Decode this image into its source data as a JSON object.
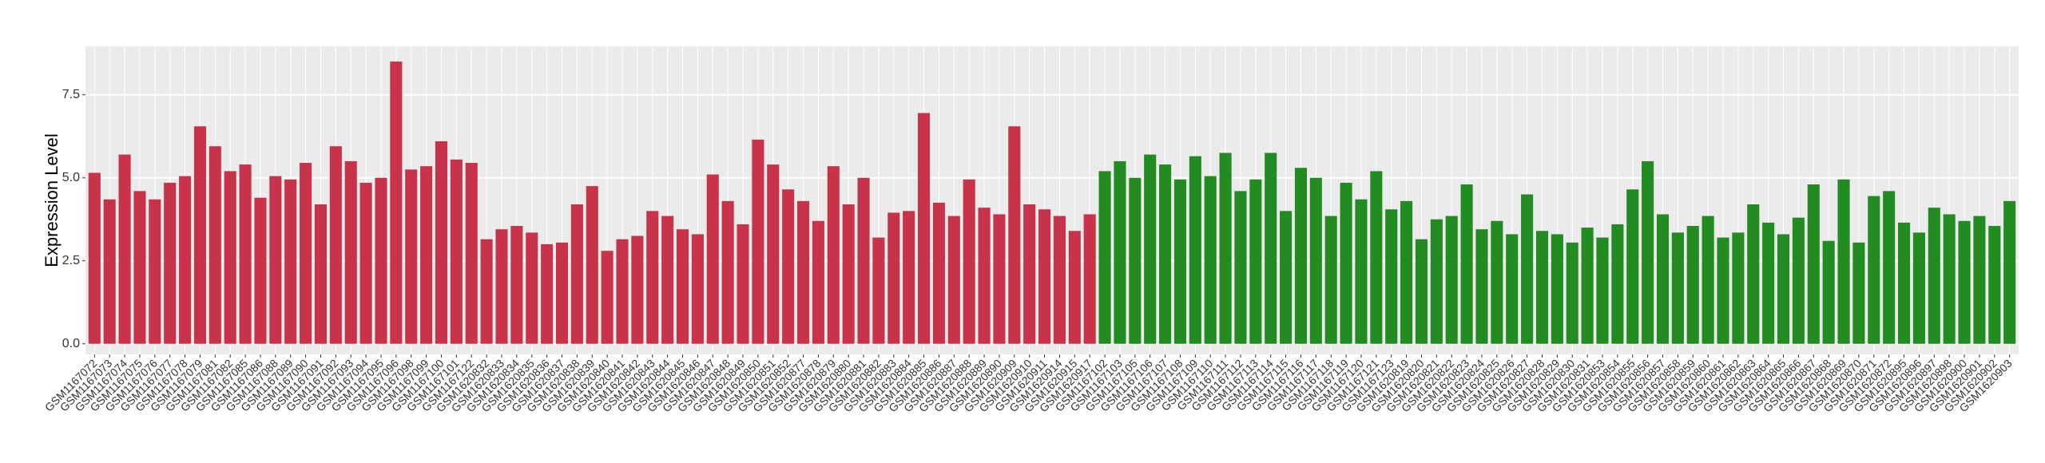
{
  "chart_data": {
    "type": "bar",
    "y_label": "Expression Level",
    "ylim": [
      -0.32,
      8.96
    ],
    "yticks": [
      {
        "value": 0,
        "label": "0.0"
      },
      {
        "value": 2.5,
        "label": "2.5"
      },
      {
        "value": 5,
        "label": "5.0"
      },
      {
        "value": 7.5,
        "label": "7.5"
      }
    ],
    "grid": true,
    "series": [
      {
        "color": "#c8334a",
        "categories": [
          "GSM1167072",
          "GSM1167073",
          "GSM1167074",
          "GSM1167075",
          "GSM1167076",
          "GSM1167077",
          "GSM1167078",
          "GSM1167079",
          "GSM1167081",
          "GSM1167082",
          "GSM1167085",
          "GSM1167086",
          "GSM1167088",
          "GSM1167089",
          "GSM1167090",
          "GSM1167091",
          "GSM1167092",
          "GSM1167093",
          "GSM1167094",
          "GSM1167095",
          "GSM1167096",
          "GSM1167098",
          "GSM1167099",
          "GSM1167100",
          "GSM1167101",
          "GSM1167122",
          "GSM1620832",
          "GSM1620833",
          "GSM1620834",
          "GSM1620835",
          "GSM1620836",
          "GSM1620837",
          "GSM1620838",
          "GSM1620839",
          "GSM1620840",
          "GSM1620841",
          "GSM1620842",
          "GSM1620843",
          "GSM1620844",
          "GSM1620845",
          "GSM1620846",
          "GSM1620847",
          "GSM1620848",
          "GSM1620849",
          "GSM1620850",
          "GSM1620851",
          "GSM1620852",
          "GSM1620877",
          "GSM1620878",
          "GSM1620879",
          "GSM1620880",
          "GSM1620881",
          "GSM1620882",
          "GSM1620883",
          "GSM1620884",
          "GSM1620885",
          "GSM1620886",
          "GSM1620887",
          "GSM1620888",
          "GSM1620889",
          "GSM1620890",
          "GSM1620909",
          "GSM1620910",
          "GSM1620911",
          "GSM1620914",
          "GSM1620915",
          "GSM1620917"
        ],
        "values": [
          5.15,
          4.35,
          5.7,
          4.6,
          4.35,
          4.85,
          5.05,
          6.55,
          5.95,
          5.2,
          5.4,
          4.4,
          5.05,
          4.95,
          5.45,
          4.2,
          5.95,
          5.5,
          4.85,
          5.0,
          8.5,
          5.25,
          5.35,
          6.1,
          5.55,
          5.45,
          3.15,
          3.45,
          3.55,
          3.35,
          3.0,
          3.05,
          4.2,
          4.75,
          2.8,
          3.15,
          3.25,
          4.0,
          3.85,
          3.45,
          3.3,
          5.1,
          4.3,
          3.6,
          6.15,
          5.4,
          4.65,
          4.3,
          3.7,
          5.35,
          4.2,
          5.0,
          3.2,
          3.95,
          4.0,
          6.95,
          4.25,
          3.85,
          4.95,
          4.1,
          3.9,
          6.55,
          4.2,
          4.05,
          3.85,
          3.4,
          3.9
        ]
      },
      {
        "color": "#228b22",
        "categories": [
          "GSM1167102",
          "GSM1167103",
          "GSM1167105",
          "GSM1167106",
          "GSM1167107",
          "GSM1167108",
          "GSM1167109",
          "GSM1167110",
          "GSM1167111",
          "GSM1167112",
          "GSM1167113",
          "GSM1167114",
          "GSM1167115",
          "GSM1167116",
          "GSM1167117",
          "GSM1167118",
          "GSM1167119",
          "GSM1167120",
          "GSM1167121",
          "GSM1167123",
          "GSM1620819",
          "GSM1620820",
          "GSM1620821",
          "GSM1620822",
          "GSM1620823",
          "GSM1620824",
          "GSM1620825",
          "GSM1620826",
          "GSM1620827",
          "GSM1620828",
          "GSM1620829",
          "GSM1620830",
          "GSM1620831",
          "GSM1620853",
          "GSM1620854",
          "GSM1620855",
          "GSM1620856",
          "GSM1620857",
          "GSM1620858",
          "GSM1620859",
          "GSM1620860",
          "GSM1620861",
          "GSM1620862",
          "GSM1620863",
          "GSM1620864",
          "GSM1620865",
          "GSM1620866",
          "GSM1620867",
          "GSM1620868",
          "GSM1620869",
          "GSM1620870",
          "GSM1620871",
          "GSM1620872",
          "GSM1620895",
          "GSM1620896",
          "GSM1620897",
          "GSM1620898",
          "GSM1620900",
          "GSM1620901",
          "GSM1620902",
          "GSM1620903"
        ],
        "values": [
          5.2,
          5.5,
          5.0,
          5.7,
          5.4,
          4.95,
          5.65,
          5.05,
          5.75,
          4.6,
          4.95,
          5.75,
          4.0,
          5.3,
          5.0,
          3.85,
          4.85,
          4.35,
          5.2,
          4.05,
          4.3,
          3.15,
          3.75,
          3.85,
          4.8,
          3.45,
          3.7,
          3.3,
          4.5,
          3.4,
          3.3,
          3.05,
          3.5,
          3.2,
          3.6,
          4.65,
          5.5,
          3.9,
          3.35,
          3.55,
          3.85,
          3.2,
          3.35,
          4.2,
          3.65,
          3.3,
          3.8,
          4.8,
          3.1,
          4.95,
          3.05,
          4.45,
          4.6,
          3.65,
          3.35,
          4.1,
          3.9,
          3.7,
          3.85,
          3.55,
          4.3
        ]
      }
    ]
  }
}
